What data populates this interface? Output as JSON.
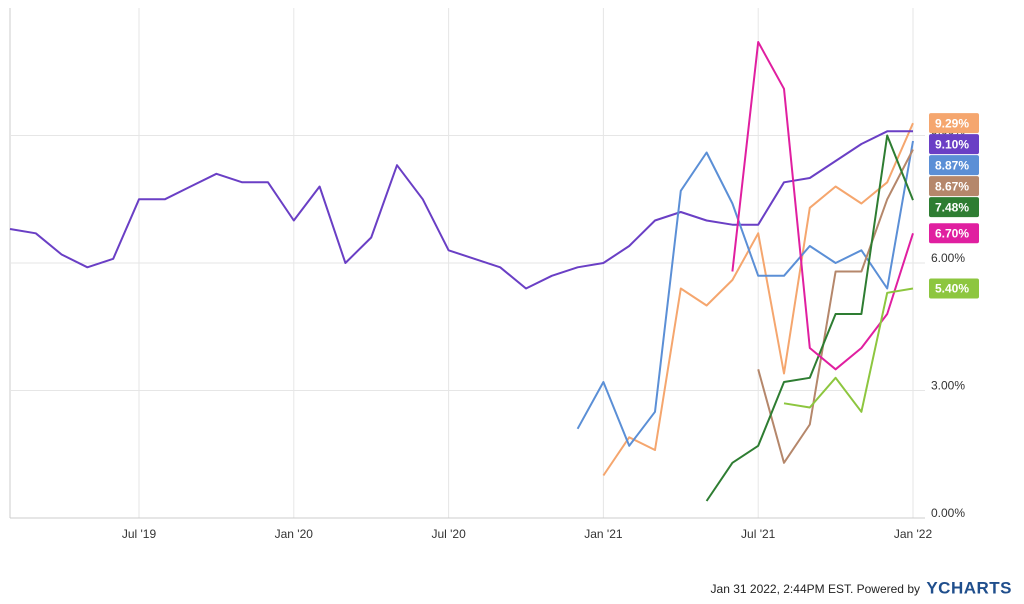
{
  "chart_data": {
    "type": "line",
    "x": [
      "2019-02",
      "2019-03",
      "2019-04",
      "2019-05",
      "2019-06",
      "2019-07",
      "2019-08",
      "2019-09",
      "2019-10",
      "2019-11",
      "2019-12",
      "2020-01",
      "2020-02",
      "2020-03",
      "2020-04",
      "2020-05",
      "2020-06",
      "2020-07",
      "2020-08",
      "2020-09",
      "2020-10",
      "2020-11",
      "2020-12",
      "2021-01",
      "2021-02",
      "2021-03",
      "2021-04",
      "2021-05",
      "2021-06",
      "2021-07",
      "2021-08",
      "2021-09",
      "2021-10",
      "2021-11",
      "2021-12",
      "2022-01"
    ],
    "xlim": [
      "2019-02",
      "2022-01"
    ],
    "xticks": [
      {
        "value": "2019-07",
        "label": "Jul '19"
      },
      {
        "value": "2020-01",
        "label": "Jan '20"
      },
      {
        "value": "2020-07",
        "label": "Jul '20"
      },
      {
        "value": "2021-01",
        "label": "Jan '21"
      },
      {
        "value": "2021-07",
        "label": "Jul '21"
      },
      {
        "value": "2022-01",
        "label": "Jan '22"
      }
    ],
    "ylim": [
      0,
      12
    ],
    "yticks": [
      {
        "value": 0,
        "label": "0.00%"
      },
      {
        "value": 3,
        "label": "3.00%"
      },
      {
        "value": 6,
        "label": "6.00%"
      },
      {
        "value": 9,
        "label": "9.00%"
      }
    ],
    "grid": true,
    "series": [
      {
        "color": "#f5a66e",
        "values": [
          null,
          null,
          null,
          null,
          null,
          null,
          null,
          null,
          null,
          null,
          null,
          null,
          null,
          null,
          null,
          null,
          null,
          null,
          null,
          null,
          null,
          null,
          null,
          1.0,
          1.9,
          1.6,
          5.4,
          5.0,
          5.6,
          6.7,
          3.4,
          7.3,
          7.8,
          7.4,
          7.9,
          9.29
        ],
        "value_labels": [
          null,
          null,
          null,
          null,
          null,
          null,
          null,
          null,
          null,
          null,
          null,
          null,
          null,
          null,
          null,
          null,
          null,
          null,
          null,
          null,
          null,
          null,
          null,
          null,
          null,
          null,
          null,
          null,
          null,
          null,
          null,
          null,
          null,
          null,
          null,
          "9.29%"
        ]
      },
      {
        "color": "#6a3fc5",
        "values": [
          6.8,
          6.7,
          6.2,
          5.9,
          6.1,
          7.5,
          7.5,
          7.8,
          8.1,
          7.9,
          7.9,
          7.0,
          7.8,
          6.0,
          6.6,
          8.3,
          7.5,
          6.3,
          6.1,
          5.9,
          5.4,
          5.7,
          5.9,
          6.0,
          6.4,
          7.0,
          7.2,
          7.0,
          6.9,
          6.9,
          7.9,
          8.0,
          8.4,
          8.8,
          9.1,
          9.1
        ],
        "value_labels": [
          null,
          null,
          null,
          null,
          null,
          null,
          null,
          null,
          null,
          null,
          null,
          null,
          null,
          null,
          null,
          null,
          null,
          null,
          null,
          null,
          null,
          null,
          null,
          null,
          null,
          null,
          null,
          null,
          null,
          null,
          null,
          null,
          null,
          null,
          null,
          "9.10%"
        ]
      },
      {
        "color": "#5b8fd6",
        "values": [
          null,
          null,
          null,
          null,
          null,
          null,
          null,
          null,
          null,
          null,
          null,
          null,
          null,
          null,
          null,
          null,
          null,
          null,
          null,
          null,
          null,
          null,
          2.1,
          3.2,
          1.7,
          2.5,
          7.7,
          8.6,
          7.4,
          5.7,
          5.7,
          6.4,
          6.0,
          6.3,
          5.4,
          8.87
        ],
        "value_labels": [
          null,
          null,
          null,
          null,
          null,
          null,
          null,
          null,
          null,
          null,
          null,
          null,
          null,
          null,
          null,
          null,
          null,
          null,
          null,
          null,
          null,
          null,
          null,
          null,
          null,
          null,
          null,
          null,
          null,
          null,
          null,
          null,
          null,
          null,
          null,
          "8.87%"
        ]
      },
      {
        "color": "#b5876b",
        "values": [
          null,
          null,
          null,
          null,
          null,
          null,
          null,
          null,
          null,
          null,
          null,
          null,
          null,
          null,
          null,
          null,
          null,
          null,
          null,
          null,
          null,
          null,
          null,
          null,
          null,
          null,
          null,
          null,
          null,
          3.5,
          1.3,
          2.2,
          5.8,
          5.8,
          7.5,
          8.67
        ],
        "value_labels": [
          null,
          null,
          null,
          null,
          null,
          null,
          null,
          null,
          null,
          null,
          null,
          null,
          null,
          null,
          null,
          null,
          null,
          null,
          null,
          null,
          null,
          null,
          null,
          null,
          null,
          null,
          null,
          null,
          null,
          null,
          null,
          null,
          null,
          null,
          null,
          "8.67%"
        ]
      },
      {
        "color": "#2e7d32",
        "values": [
          null,
          null,
          null,
          null,
          null,
          null,
          null,
          null,
          null,
          null,
          null,
          null,
          null,
          null,
          null,
          null,
          null,
          null,
          null,
          null,
          null,
          null,
          null,
          null,
          null,
          null,
          null,
          0.4,
          1.3,
          1.7,
          3.2,
          3.3,
          4.8,
          4.8,
          9.0,
          7.48
        ],
        "value_labels": [
          null,
          null,
          null,
          null,
          null,
          null,
          null,
          null,
          null,
          null,
          null,
          null,
          null,
          null,
          null,
          null,
          null,
          null,
          null,
          null,
          null,
          null,
          null,
          null,
          null,
          null,
          null,
          null,
          null,
          null,
          null,
          null,
          null,
          null,
          null,
          "7.48%"
        ]
      },
      {
        "color": "#e01fa0",
        "values": [
          null,
          null,
          null,
          null,
          null,
          null,
          null,
          null,
          null,
          null,
          null,
          null,
          null,
          null,
          null,
          null,
          null,
          null,
          null,
          null,
          null,
          null,
          null,
          null,
          null,
          null,
          null,
          null,
          5.8,
          11.2,
          10.1,
          4.0,
          3.5,
          4.0,
          4.8,
          6.7
        ],
        "value_labels": [
          null,
          null,
          null,
          null,
          null,
          null,
          null,
          null,
          null,
          null,
          null,
          null,
          null,
          null,
          null,
          null,
          null,
          null,
          null,
          null,
          null,
          null,
          null,
          null,
          null,
          null,
          null,
          null,
          null,
          null,
          null,
          null,
          null,
          null,
          null,
          "6.70%"
        ]
      },
      {
        "color": "#8dc63f",
        "values": [
          null,
          null,
          null,
          null,
          null,
          null,
          null,
          null,
          null,
          null,
          null,
          null,
          null,
          null,
          null,
          null,
          null,
          null,
          null,
          null,
          null,
          null,
          null,
          null,
          null,
          null,
          null,
          null,
          null,
          null,
          2.7,
          2.6,
          3.3,
          2.5,
          5.3,
          5.4
        ],
        "value_labels": [
          null,
          null,
          null,
          null,
          null,
          null,
          null,
          null,
          null,
          null,
          null,
          null,
          null,
          null,
          null,
          null,
          null,
          null,
          null,
          null,
          null,
          null,
          null,
          null,
          null,
          null,
          null,
          null,
          null,
          null,
          null,
          null,
          null,
          null,
          null,
          "5.40%"
        ]
      }
    ],
    "footer": "Jan 31 2022, 2:44PM EST. Powered by",
    "brand": "YCHARTS"
  }
}
